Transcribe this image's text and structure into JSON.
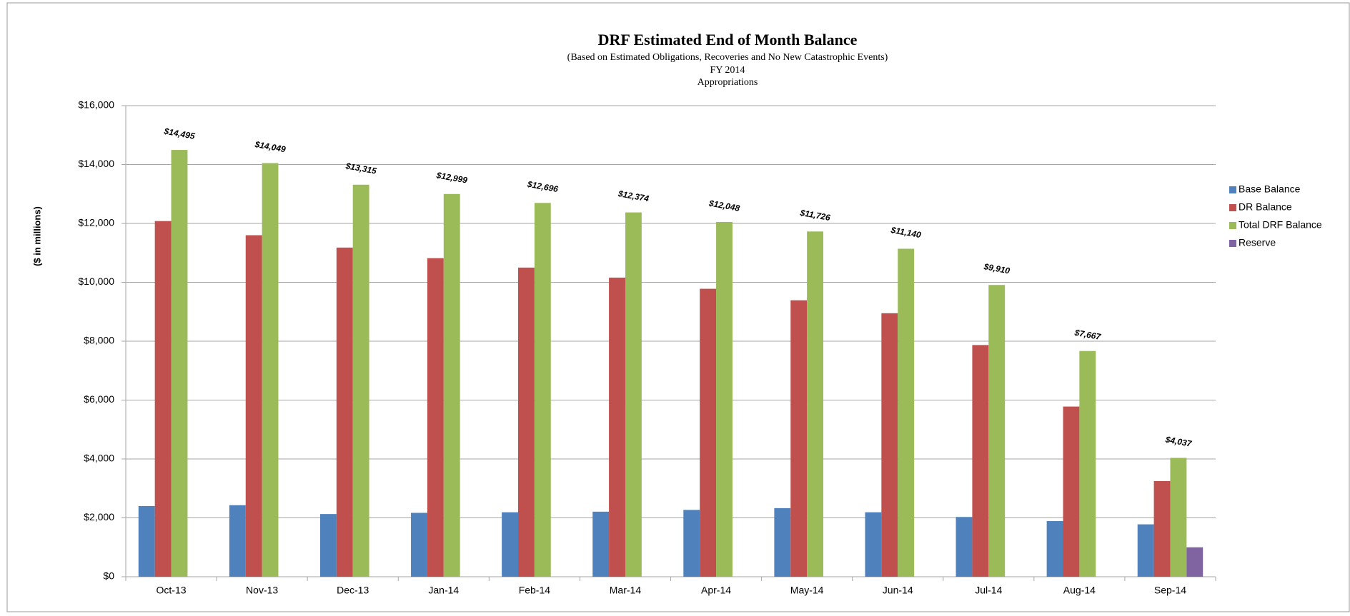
{
  "chart_data": {
    "type": "bar",
    "title": "DRF Estimated End of Month Balance",
    "subtitle": [
      "(Based on Estimated Obligations, Recoveries and No New Catastrophic Events)",
      "FY 2014",
      "Appropriations"
    ],
    "ylabel": "($ in millions)",
    "categories": [
      "Oct-13",
      "Nov-13",
      "Dec-13",
      "Jan-14",
      "Feb-14",
      "Mar-14",
      "Apr-14",
      "May-14",
      "Jun-14",
      "Jul-14",
      "Aug-14",
      "Sep-14"
    ],
    "series": [
      {
        "name": "Base Balance",
        "color": "#4f81bd",
        "values": [
          2400,
          2430,
          2130,
          2170,
          2190,
          2210,
          2270,
          2330,
          2190,
          2030,
          1890,
          1780
        ]
      },
      {
        "name": "DR Balance",
        "color": "#c0504d",
        "values": [
          12080,
          11600,
          11180,
          10820,
          10500,
          10160,
          9780,
          9390,
          8950,
          7870,
          5780,
          3250
        ]
      },
      {
        "name": "Total DRF Balance",
        "color": "#9bbb59",
        "values": [
          14495,
          14049,
          13315,
          12999,
          12696,
          12374,
          12048,
          11726,
          11140,
          9910,
          7667,
          4037
        ],
        "value_labels": [
          "$14,495",
          "$14,049",
          "$13,315",
          "$12,999",
          "$12,696",
          "$12,374",
          "$12,048",
          "$11,726",
          "$11,140",
          "$9,910",
          "$7,667",
          "$4,037"
        ]
      },
      {
        "name": "Reserve",
        "color": "#8064a2",
        "values": [
          null,
          null,
          null,
          null,
          null,
          null,
          null,
          null,
          null,
          null,
          null,
          1000
        ]
      }
    ],
    "ylim": [
      0,
      16000
    ],
    "yticks": [
      {
        "value": 0,
        "label": "$0"
      },
      {
        "value": 2000,
        "label": "$2,000"
      },
      {
        "value": 4000,
        "label": "$4,000"
      },
      {
        "value": 6000,
        "label": "$6,000"
      },
      {
        "value": 8000,
        "label": "$8,000"
      },
      {
        "value": 10000,
        "label": "$10,000"
      },
      {
        "value": 12000,
        "label": "$12,000"
      },
      {
        "value": 14000,
        "label": "$14,000"
      },
      {
        "value": 16000,
        "label": "$16,000"
      }
    ],
    "grid": true,
    "legend": "right"
  }
}
